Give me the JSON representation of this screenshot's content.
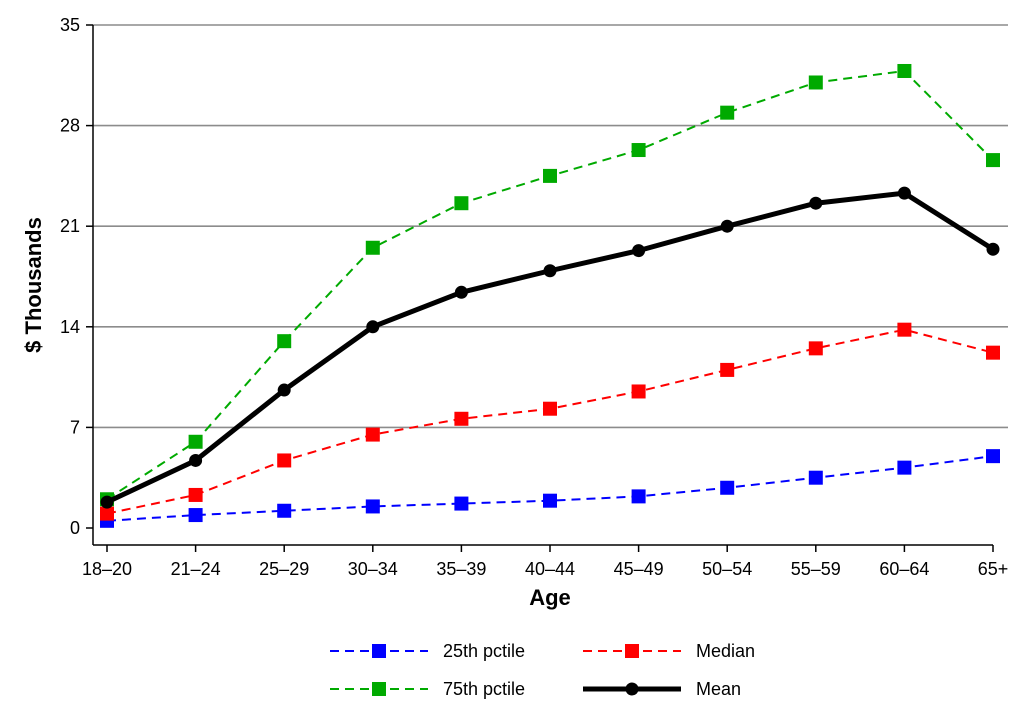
{
  "chart_data": {
    "type": "line",
    "xlabel": "Age",
    "ylabel": "$ Thousands",
    "categories": [
      "18–20",
      "21–24",
      "25–29",
      "30–34",
      "35–39",
      "40–44",
      "45–49",
      "50–54",
      "55–59",
      "60–64",
      "65+"
    ],
    "ylim": [
      0,
      35
    ],
    "yticks": [
      0,
      7,
      14,
      21,
      28,
      35
    ],
    "grid": true,
    "legend_position": "bottom",
    "series": [
      {
        "name": "25th pctile",
        "color": "#0000ff",
        "style": "dashed",
        "marker": "square",
        "values": [
          0.5,
          0.9,
          1.2,
          1.5,
          1.7,
          1.9,
          2.2,
          2.8,
          3.5,
          4.2,
          5.0
        ]
      },
      {
        "name": "Median",
        "color": "#ff0000",
        "style": "dashed",
        "marker": "square",
        "values": [
          1.0,
          2.3,
          4.7,
          6.5,
          7.6,
          8.3,
          9.5,
          11.0,
          12.5,
          13.8,
          12.2
        ]
      },
      {
        "name": "75th pctile",
        "color": "#00aa00",
        "style": "dashed",
        "marker": "square",
        "values": [
          2.0,
          6.0,
          13.0,
          19.5,
          22.6,
          24.5,
          26.3,
          28.9,
          31.0,
          31.8,
          25.6
        ]
      },
      {
        "name": "Mean",
        "color": "#000000",
        "style": "solid",
        "marker": "circle",
        "values": [
          1.8,
          4.7,
          9.6,
          14.0,
          16.4,
          17.9,
          19.3,
          21.0,
          22.6,
          23.3,
          19.4
        ]
      }
    ]
  }
}
